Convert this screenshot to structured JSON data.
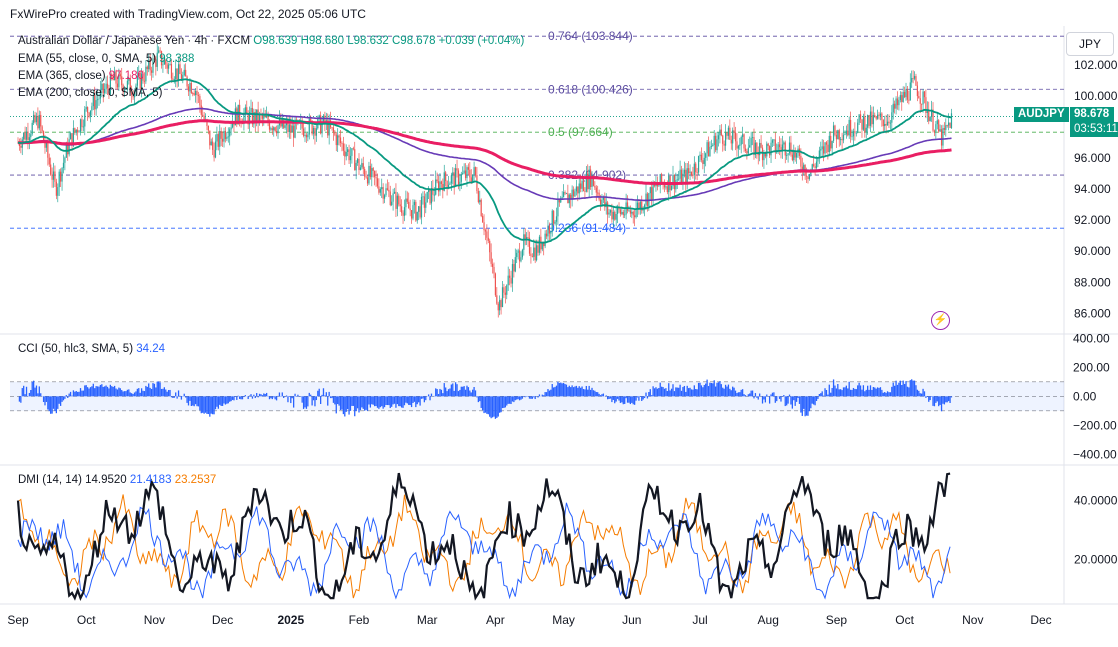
{
  "header": {
    "credit": "FxWirePro created with TradingView.com, Oct 22, 2025 05:06 UTC",
    "symbol": "Australian Dollar / Japanese Yen · 4h · FXCM",
    "ohlc": "O98.639 H98.680 L98.632 C98.678 +0.039 (+0.04%)",
    "ema55_label": "EMA (55, close, 0, SMA, 5)",
    "ema55_value": "98.388",
    "ema365_label": "EMA (365, close)",
    "ema365_value": "97.180",
    "ema200_label": "EMA (200, close, 0, SMA, 5)"
  },
  "currency_button": "JPY",
  "price_badge": {
    "symbol": "AUDJPY",
    "price": "98.678",
    "countdown": "03:53:11"
  },
  "colors": {
    "up": "#26a69a",
    "down": "#ef5350",
    "ema55": "#089981",
    "ema365": "#e91e63",
    "ema200": "#673ab7",
    "fib": "#5b4ba0",
    "cci": "#2962ff",
    "adx": "#131722",
    "di_plus": "#2962ff",
    "di_minus": "#f57c00",
    "fib_level": "#2962ff"
  },
  "icons": {
    "alert": "lightning-circle-icon"
  },
  "chart_data": [
    {
      "type": "candlestick",
      "title": "Australian Dollar / Japanese Yen · 4h · FXCM",
      "x_axis_labels": [
        "Sep",
        "Oct",
        "Nov",
        "Dec",
        "2025",
        "Feb",
        "Mar",
        "Apr",
        "May",
        "Jun",
        "Jul",
        "Aug",
        "Sep",
        "Oct",
        "Nov",
        "Dec"
      ],
      "y_ticks": [
        86,
        88,
        90,
        92,
        94,
        96,
        98,
        100,
        102
      ],
      "y_tick_labels": [
        "86.000",
        "88.000",
        "90.000",
        "92.000",
        "94.000",
        "96.000",
        "98.000",
        "100.000",
        "102.000"
      ],
      "ylim": [
        84.8,
        104.5
      ],
      "fib_levels": [
        {
          "label": "0.764 (103.844)",
          "value": 103.844
        },
        {
          "label": "0.618 (100.426)",
          "value": 100.426
        },
        {
          "label": "0.5 (97.664)",
          "value": 97.664
        },
        {
          "label": "0.382 (94.902)",
          "value": 94.902
        },
        {
          "label": "0.236 (91.484)",
          "value": 91.484
        }
      ],
      "last_price": 98.678,
      "price_anchors": [
        {
          "month": 0.0,
          "price": 97.0
        },
        {
          "month": 0.3,
          "price": 98.5
        },
        {
          "month": 0.55,
          "price": 94.0
        },
        {
          "month": 0.75,
          "price": 97.0
        },
        {
          "month": 1.0,
          "price": 99.0
        },
        {
          "month": 1.4,
          "price": 101.0
        },
        {
          "month": 1.7,
          "price": 100.5
        },
        {
          "month": 2.05,
          "price": 102.5
        },
        {
          "month": 2.6,
          "price": 100.5
        },
        {
          "month": 2.85,
          "price": 96.5
        },
        {
          "month": 3.2,
          "price": 98.8
        },
        {
          "month": 3.55,
          "price": 98.5
        },
        {
          "month": 4.0,
          "price": 97.8
        },
        {
          "month": 4.5,
          "price": 98.2
        },
        {
          "month": 5.0,
          "price": 95.5
        },
        {
          "month": 5.6,
          "price": 93.0
        },
        {
          "month": 5.85,
          "price": 92.5
        },
        {
          "month": 6.2,
          "price": 94.5
        },
        {
          "month": 6.7,
          "price": 95.0
        },
        {
          "month": 7.05,
          "price": 86.5
        },
        {
          "month": 7.4,
          "price": 90.5
        },
        {
          "month": 7.6,
          "price": 90.0
        },
        {
          "month": 7.95,
          "price": 93.0
        },
        {
          "month": 8.4,
          "price": 94.8
        },
        {
          "month": 8.65,
          "price": 92.5
        },
        {
          "month": 9.0,
          "price": 92.5
        },
        {
          "month": 9.4,
          "price": 94.3
        },
        {
          "month": 9.8,
          "price": 94.8
        },
        {
          "month": 10.3,
          "price": 97.5
        },
        {
          "month": 10.9,
          "price": 96.5
        },
        {
          "month": 11.3,
          "price": 96.8
        },
        {
          "month": 11.6,
          "price": 95.0
        },
        {
          "month": 11.95,
          "price": 97.5
        },
        {
          "month": 12.4,
          "price": 98.3
        },
        {
          "month": 12.75,
          "price": 98.5
        },
        {
          "month": 13.0,
          "price": 100.0
        },
        {
          "month": 13.15,
          "price": 100.8
        },
        {
          "month": 13.35,
          "price": 99.0
        },
        {
          "month": 13.55,
          "price": 97.2
        },
        {
          "month": 13.7,
          "price": 98.678
        }
      ],
      "series": [
        {
          "name": "EMA (55, close, 0, SMA, 5)",
          "last": 98.388
        },
        {
          "name": "EMA (365, close)",
          "last": 97.18
        },
        {
          "name": "EMA (200, close, 0, SMA, 5)"
        }
      ]
    },
    {
      "type": "area",
      "title": "CCI (50, hlc3, SMA, 5)",
      "last_value": "34.24",
      "y_ticks": [
        -400,
        -200,
        0,
        200,
        400
      ],
      "y_tick_labels": [
        "−400.00",
        "−200.00",
        "0.00",
        "200.00",
        "400.00"
      ],
      "ylim": [
        -460,
        430
      ],
      "band": [
        -100,
        100
      ]
    },
    {
      "type": "line",
      "title": "DMI (14, 14)",
      "values": {
        "adx": "14.9520",
        "di_plus": "21.4183",
        "di_minus": "23.2537"
      },
      "y_ticks": [
        20,
        40
      ],
      "y_tick_labels": [
        "20.0000",
        "40.0000"
      ],
      "ylim": [
        5,
        52
      ]
    }
  ]
}
